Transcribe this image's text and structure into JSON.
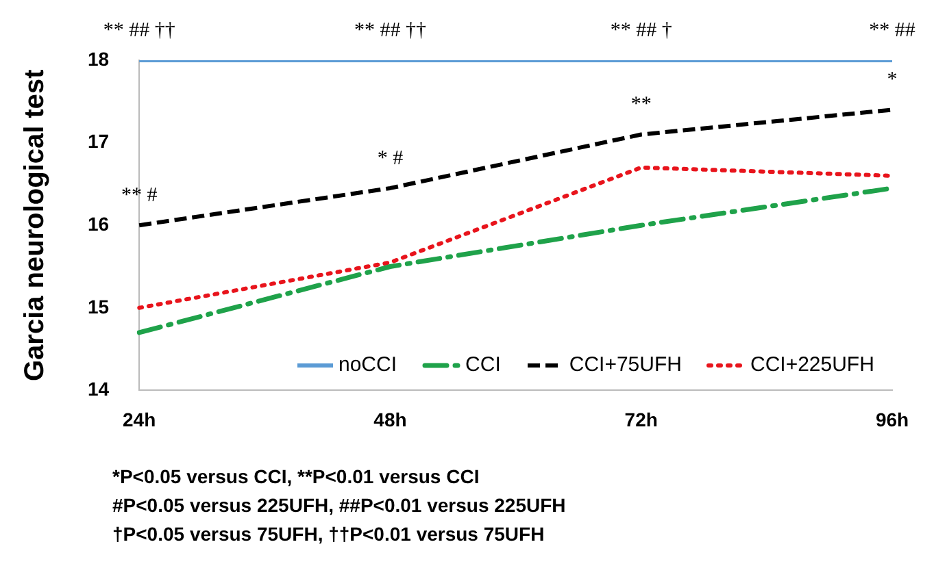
{
  "chart_data": {
    "type": "line",
    "ylabel": "Garcia neurological test",
    "categories": [
      "24h",
      "48h",
      "72h",
      "96h"
    ],
    "series": [
      {
        "name": "noCCI",
        "color": "#5b9bd5",
        "line_style": "solid",
        "values": [
          18,
          18,
          18,
          18
        ]
      },
      {
        "name": "CCI",
        "color": "#1fa24a",
        "line_style": "dashdot",
        "values": [
          14.7,
          15.5,
          16.0,
          16.45
        ]
      },
      {
        "name": "CCI+75UFH",
        "color": "#000000",
        "line_style": "dashed",
        "values": [
          16.0,
          16.45,
          17.1,
          17.4
        ]
      },
      {
        "name": "CCI+225UFH",
        "color": "#e8141c",
        "line_style": "dotted",
        "values": [
          15.0,
          15.55,
          16.7,
          16.6
        ]
      }
    ],
    "ylim": [
      14,
      18
    ],
    "yticks": [
      14,
      15,
      16,
      17,
      18
    ],
    "grid": false,
    "legend": "bottom",
    "marker": "none",
    "annotations": [
      {
        "text": "** ## ††",
        "x": "24h",
        "y": 18
      },
      {
        "text": "** ## ††",
        "x": "48h",
        "y": 18
      },
      {
        "text": "** ## †",
        "x": "72h",
        "y": 18
      },
      {
        "text": "** ##",
        "x": "96h",
        "y": 18
      },
      {
        "text": "** #",
        "x": "24h",
        "y": 16.0
      },
      {
        "text": "* #",
        "x": "48h",
        "y": 16.45
      },
      {
        "text": "**",
        "x": "72h",
        "y": 17.1
      },
      {
        "text": "*",
        "x": "96h",
        "y": 17.4
      },
      "*P<0.05 versus CCI, **P<0.01 versus CCI",
      "#P<0.05 versus 225UFH, ##P<0.01 versus 225UFH",
      "†P<0.05 versus 75UFH, ††P<0.01 versus 75UFH"
    ]
  }
}
